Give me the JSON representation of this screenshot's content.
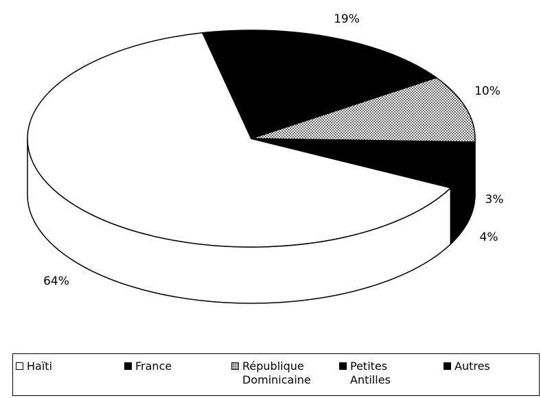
{
  "chart_data": {
    "type": "pie",
    "categories": [
      "Haïti",
      "France",
      "République Dominicaine",
      "Petites Antilles",
      "Autres"
    ],
    "values": [
      64,
      19,
      10,
      3,
      4
    ],
    "value_labels": [
      "64%",
      "19%",
      "10%",
      "3%",
      "4%"
    ],
    "colors": [
      "#ffffff",
      "#000000",
      "dots",
      "#000000",
      "#000000"
    ],
    "three_d": true
  }
}
